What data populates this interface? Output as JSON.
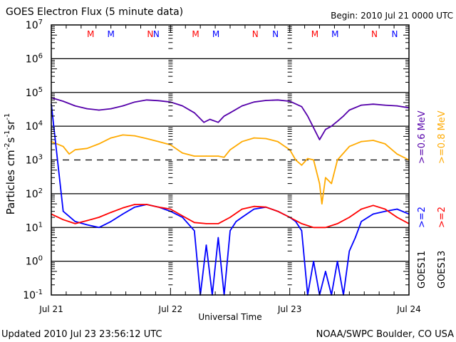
{
  "chart_data": {
    "type": "line",
    "title": "GOES Electron Flux (5 minute data)",
    "subtitle": "Begin: 2010 Jul 21 0000 UTC",
    "xlabel": "Universal Time",
    "ylabel": "Particles cm-2 s-1 sr-1",
    "ylabel_parts": {
      "main": "Particles cm",
      "e1": "-2",
      "s": "s",
      "e2": "-1",
      "sr": "sr",
      "e3": "-1"
    },
    "yscale": "log",
    "ylim": [
      0.1,
      10000000
    ],
    "y_ticks": [
      {
        "base": "10",
        "exp": "7"
      },
      {
        "base": "10",
        "exp": "6"
      },
      {
        "base": "10",
        "exp": "5"
      },
      {
        "base": "10",
        "exp": "4"
      },
      {
        "base": "10",
        "exp": "3"
      },
      {
        "base": "10",
        "exp": "2"
      },
      {
        "base": "10",
        "exp": "1"
      },
      {
        "base": "10",
        "exp": "0"
      },
      {
        "base": "10",
        "exp": "-1"
      }
    ],
    "xlim_days": [
      0,
      3
    ],
    "x_ticks": [
      "Jul 21",
      "Jul 22",
      "Jul 23",
      "Jul 24"
    ],
    "grid": true,
    "threshold_line": {
      "value": 1000,
      "style": "dashed"
    },
    "markers": [
      {
        "label": "M",
        "day": 0.33,
        "color": "#ff0000"
      },
      {
        "label": "M",
        "day": 0.5,
        "color": "#0000ff"
      },
      {
        "label": "N",
        "day": 0.83,
        "color": "#ff0000"
      },
      {
        "label": "N",
        "day": 1.0,
        "color": "#0000ff"
      },
      {
        "label": "M",
        "day": 1.33,
        "color": "#ff0000"
      },
      {
        "label": "M",
        "day": 1.5,
        "color": "#0000ff"
      },
      {
        "label": "N",
        "day": 1.83,
        "color": "#ff0000"
      },
      {
        "label": "N",
        "day": 2.0,
        "color": "#0000ff"
      },
      {
        "label": "M",
        "day": 2.33,
        "color": "#ff0000"
      },
      {
        "label": "M",
        "day": 2.5,
        "color": "#0000ff"
      },
      {
        "label": "N",
        "day": 2.83,
        "color": "#ff0000"
      },
      {
        "label": "N",
        "day": 3.0,
        "color": "#0000ff"
      }
    ],
    "legend": {
      "placement": "right",
      "energy_labels": [
        {
          "text": ">=0.6 MeV",
          "color": "#5500aa"
        },
        {
          "text": ">=0.8 MeV",
          "color": "#ffaa00"
        }
      ],
      "goes_labels": [
        {
          "text": ">=2",
          "sat": "GOES11",
          "color": "#0000ff"
        },
        {
          "text": ">=2",
          "sat": "GOES13",
          "color": "#ff0000"
        }
      ]
    },
    "series": [
      {
        "name": "GOES11 >=0.6 MeV",
        "color": "#5500aa",
        "x": [
          0,
          0.1,
          0.2,
          0.3,
          0.4,
          0.5,
          0.6,
          0.7,
          0.8,
          0.9,
          1.0,
          1.1,
          1.2,
          1.28,
          1.33,
          1.4,
          1.45,
          1.5,
          1.6,
          1.7,
          1.8,
          1.9,
          2.0,
          2.1,
          2.15,
          2.2,
          2.25,
          2.3,
          2.35,
          2.4,
          2.45,
          2.5,
          2.6,
          2.7,
          2.8,
          2.9,
          3.0
        ],
        "values": [
          70000,
          55000,
          40000,
          33000,
          30000,
          33000,
          40000,
          52000,
          60000,
          57000,
          52000,
          40000,
          25000,
          13000,
          16000,
          13000,
          20000,
          25000,
          40000,
          52000,
          58000,
          60000,
          55000,
          38000,
          20000,
          9000,
          4000,
          8000,
          10000,
          14000,
          20000,
          30000,
          42000,
          45000,
          42000,
          40000,
          35000
        ]
      },
      {
        "name": "GOES13 >=0.8 MeV",
        "color": "#ffaa00",
        "x": [
          0,
          0.1,
          0.15,
          0.2,
          0.3,
          0.4,
          0.5,
          0.6,
          0.7,
          0.8,
          0.9,
          1.0,
          1.1,
          1.2,
          1.3,
          1.4,
          1.45,
          1.5,
          1.6,
          1.7,
          1.8,
          1.9,
          2.0,
          2.05,
          2.1,
          2.15,
          2.2,
          2.25,
          2.27,
          2.3,
          2.35,
          2.4,
          2.5,
          2.6,
          2.7,
          2.8,
          2.9,
          3.0
        ],
        "values": [
          3500,
          2500,
          1500,
          2000,
          2200,
          3000,
          4500,
          5500,
          5200,
          4300,
          3500,
          2800,
          1600,
          1300,
          1300,
          1300,
          1200,
          2000,
          3500,
          4500,
          4300,
          3500,
          2000,
          1000,
          700,
          1100,
          1000,
          200,
          50,
          300,
          200,
          1000,
          2500,
          3500,
          3800,
          3000,
          1500,
          1000
        ]
      },
      {
        "name": "GOES11 >=2 MeV",
        "color": "#0000ff",
        "x": [
          0,
          0.1,
          0.2,
          0.3,
          0.4,
          0.5,
          0.6,
          0.7,
          0.8,
          0.9,
          1.0,
          1.1,
          1.2,
          1.25,
          1.3,
          1.35,
          1.4,
          1.45,
          1.5,
          1.55,
          1.6,
          1.7,
          1.8,
          1.9,
          2.0,
          2.05,
          2.1,
          2.15,
          2.2,
          2.25,
          2.3,
          2.35,
          2.4,
          2.45,
          2.5,
          2.55,
          2.6,
          2.7,
          2.8,
          2.9,
          3.0
        ],
        "values": [
          45000,
          30,
          15,
          12,
          10,
          15,
          25,
          40,
          48,
          40,
          30,
          20,
          8,
          0.1,
          3,
          0.1,
          5,
          0.1,
          8,
          15,
          20,
          35,
          40,
          30,
          20,
          15,
          8,
          0.1,
          1,
          0.1,
          0.5,
          0.1,
          1,
          0.1,
          2,
          5,
          15,
          25,
          30,
          35,
          25
        ]
      },
      {
        "name": "GOES13 >=2 MeV",
        "color": "#ff0000",
        "x": [
          0,
          0.1,
          0.2,
          0.3,
          0.4,
          0.5,
          0.6,
          0.7,
          0.8,
          0.9,
          1.0,
          1.1,
          1.2,
          1.3,
          1.4,
          1.5,
          1.6,
          1.7,
          1.8,
          1.9,
          2.0,
          2.1,
          2.2,
          2.3,
          2.4,
          2.5,
          2.6,
          2.7,
          2.8,
          2.9,
          3.0
        ],
        "values": [
          25,
          17,
          13,
          16,
          20,
          28,
          38,
          48,
          48,
          40,
          35,
          22,
          14,
          13,
          13,
          20,
          35,
          42,
          40,
          30,
          20,
          13,
          10,
          10,
          13,
          20,
          35,
          45,
          35,
          20,
          13
        ]
      }
    ]
  },
  "header": {
    "title": "GOES Electron Flux (5 minute data)",
    "begin": "Begin: 2010 Jul 21 0000 UTC"
  },
  "footer": {
    "updated": "Updated 2010 Jul 23 23:56:12 UTC",
    "credit": "NOAA/SWPC Boulder, CO USA"
  }
}
